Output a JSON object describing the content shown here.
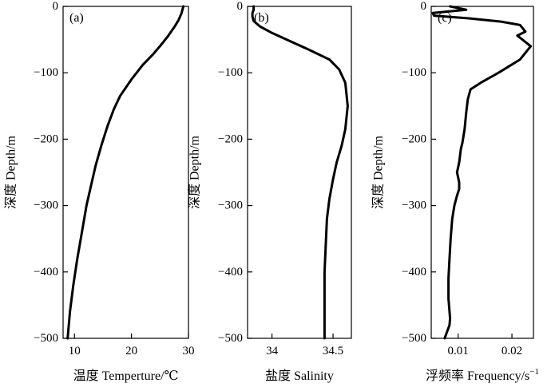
{
  "chart_data": [
    {
      "type": "line",
      "panel_label": "(a)",
      "xlabel": "温度 Temperture/℃",
      "ylabel": "深度 Depth/m",
      "xlim": [
        8,
        30
      ],
      "ylim": [
        -500,
        0
      ],
      "xticks": [
        10,
        20,
        30
      ],
      "yticks": [
        0,
        -100,
        -200,
        -300,
        -400,
        -500
      ],
      "ytick_labels": [
        "0",
        "−100",
        "−200",
        "−300",
        "−400",
        "−500"
      ],
      "grid": false,
      "series": [
        {
          "x": [
            29.1,
            28.8,
            28.3,
            27.6,
            26.4,
            25.0,
            23.8,
            22.0,
            20.0,
            18.0,
            16.9,
            15.8,
            14.7,
            13.7,
            12.9,
            12.1,
            11.3,
            10.5,
            9.8,
            9.2,
            8.8
          ],
          "y": [
            0,
            -10,
            -20,
            -30,
            -45,
            -60,
            -72,
            -88,
            -110,
            -135,
            -155,
            -180,
            -210,
            -240,
            -270,
            -300,
            -340,
            -380,
            -420,
            -460,
            -500
          ]
        }
      ]
    },
    {
      "type": "line",
      "panel_label": "(b)",
      "xlabel": "盐度 Salinity",
      "ylabel": "深度 Depth/m",
      "xlim": [
        33.8,
        34.65
      ],
      "ylim": [
        -500,
        0
      ],
      "xticks": [
        34,
        34.5
      ],
      "yticks": [
        0,
        -100,
        -200,
        -300,
        -400,
        -500
      ],
      "ytick_labels": [
        "0",
        "−100",
        "−200",
        "−300",
        "−400",
        "−500"
      ],
      "grid": false,
      "series": [
        {
          "x": [
            33.85,
            33.85,
            33.84,
            33.84,
            33.85,
            33.9,
            34.0,
            34.12,
            34.3,
            34.47,
            34.55,
            34.6,
            34.62,
            34.6,
            34.57,
            34.53,
            34.5,
            34.47,
            34.45,
            34.44,
            34.43,
            34.43,
            34.43
          ],
          "y": [
            0,
            -5,
            -10,
            -15,
            -22,
            -30,
            -40,
            -50,
            -65,
            -80,
            -95,
            -115,
            -150,
            -185,
            -210,
            -235,
            -260,
            -290,
            -320,
            -360,
            -400,
            -450,
            -500
          ]
        }
      ]
    },
    {
      "type": "line",
      "panel_label": "(c)",
      "xlabel": "浮频率 Frequency/s",
      "xlabel_sup": "−1",
      "ylabel": "深度 Depth/m",
      "xlim": [
        0.005,
        0.024
      ],
      "ylim": [
        -500,
        0
      ],
      "xticks": [
        0.01,
        0.02
      ],
      "yticks": [
        0,
        -100,
        -200,
        -300,
        -400,
        -500
      ],
      "ytick_labels": [
        "0",
        "−100",
        "−200",
        "−300",
        "−400",
        "−500"
      ],
      "grid": false,
      "series": [
        {
          "x": [
            0.0085,
            0.0115,
            0.0053,
            0.0055,
            0.012,
            0.018,
            0.0215,
            0.0225,
            0.021,
            0.0235,
            0.0215,
            0.0175,
            0.0142,
            0.0123,
            0.0118,
            0.0115,
            0.0112,
            0.0108,
            0.0105,
            0.0102,
            0.0098,
            0.0102,
            0.0102,
            0.0098,
            0.0093,
            0.0089,
            0.0086,
            0.0084,
            0.0082,
            0.0082,
            0.0085,
            0.0084,
            0.0075
          ],
          "y": [
            0,
            -5,
            -10,
            -14,
            -18,
            -23,
            -28,
            -38,
            -44,
            -60,
            -80,
            -100,
            -115,
            -125,
            -140,
            -160,
            -185,
            -205,
            -215,
            -235,
            -250,
            -265,
            -275,
            -285,
            -300,
            -320,
            -350,
            -380,
            -410,
            -440,
            -470,
            -480,
            -500
          ]
        }
      ]
    }
  ]
}
